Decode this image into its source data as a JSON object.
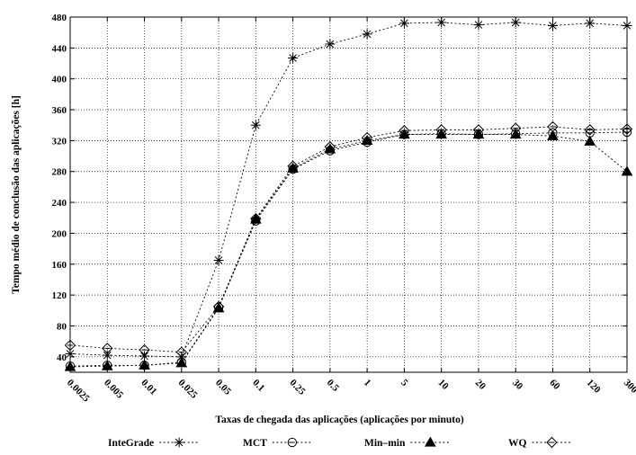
{
  "chart_data": {
    "type": "line",
    "title": "",
    "xlabel": "Taxas de chegada das aplicações (aplicações por minuto)",
    "ylabel": "Tempo médio de conclusão das aplicações [h]",
    "categories": [
      "0.0025",
      "0.005",
      "0.01",
      "0.025",
      "0.05",
      "0.1",
      "0.25",
      "0.5",
      "1",
      "5",
      "10",
      "20",
      "30",
      "60",
      "120",
      "300"
    ],
    "ylim": [
      20,
      480
    ],
    "yticks": [
      40,
      80,
      120,
      160,
      200,
      240,
      280,
      320,
      360,
      400,
      440,
      480
    ],
    "grid": true,
    "legend_position": "bottom",
    "series": [
      {
        "name": "InteGrade",
        "marker": "asterisk",
        "values": [
          44,
          42,
          41,
          40,
          165,
          340,
          427,
          445,
          458,
          472,
          473,
          470,
          473,
          469,
          472,
          469
        ]
      },
      {
        "name": "MCT",
        "marker": "open-circle",
        "values": [
          28,
          29,
          29,
          33,
          104,
          216,
          283,
          307,
          318,
          328,
          329,
          328,
          329,
          330,
          330,
          331
        ]
      },
      {
        "name": "Min–min",
        "marker": "filled-triangle",
        "values": [
          27,
          28,
          29,
          32,
          103,
          218,
          284,
          309,
          320,
          328,
          328,
          328,
          328,
          326,
          319,
          280
        ]
      },
      {
        "name": "WQ",
        "marker": "open-diamond",
        "values": [
          55,
          51,
          49,
          46,
          105,
          219,
          287,
          312,
          324,
          333,
          334,
          334,
          336,
          338,
          334,
          335
        ]
      }
    ]
  }
}
